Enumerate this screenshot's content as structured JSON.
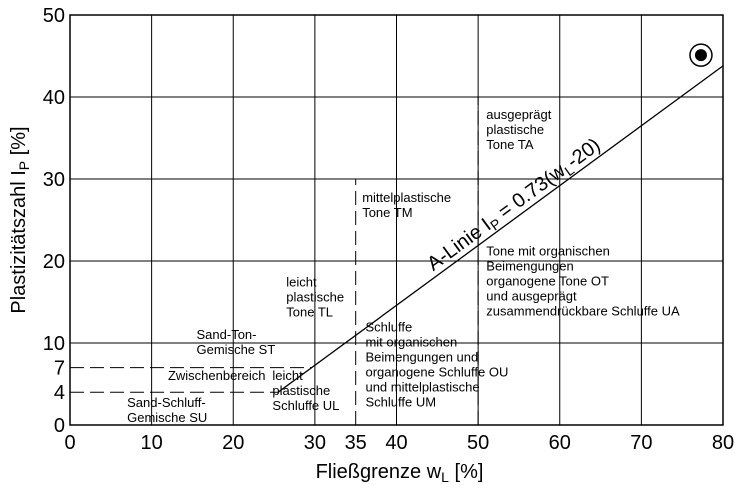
{
  "chart_data": {
    "type": "line",
    "title": "",
    "xlabel": {
      "main": "Fließgrenze w",
      "sub": "L",
      "unit": " [%]"
    },
    "ylabel": {
      "main": "Plastizitätszahl I",
      "sub": "P",
      "unit": " [%]"
    },
    "xlim": [
      0,
      80
    ],
    "ylim": [
      0,
      50
    ],
    "grid": true,
    "x_ticks": [
      0,
      10,
      20,
      30,
      35,
      40,
      50,
      60,
      70,
      80
    ],
    "y_ticks": [
      0,
      4,
      7,
      10,
      20,
      30,
      40,
      50
    ],
    "series": [
      {
        "label": {
          "prefix": "A-Linie I",
          "sub": "P",
          "mid": " = 0.73(w",
          "sub2": "L",
          "suffix": "-20)"
        },
        "style": "solid",
        "x": [
          25.5,
          80
        ],
        "y": [
          4,
          43.8
        ]
      }
    ],
    "boundaries": [
      {
        "style": "dashed",
        "x": [
          0,
          25.5
        ],
        "y": [
          4,
          4
        ]
      },
      {
        "style": "dashed",
        "x": [
          0,
          29.6
        ],
        "y": [
          7,
          7
        ]
      },
      {
        "style": "dashed",
        "x": [
          35,
          35
        ],
        "y": [
          0,
          30
        ]
      },
      {
        "style": "dashed",
        "x": [
          50,
          50
        ],
        "y": [
          0,
          40
        ]
      }
    ],
    "points": [
      {
        "x": 77.3,
        "y": 45.1,
        "marker": "circled-dot"
      }
    ],
    "zones": [
      {
        "lines": [
          "ausgeprägt",
          "plastische",
          "Tone TA"
        ],
        "x": 51,
        "y": 37.3
      },
      {
        "lines": [
          "mittelplastische",
          "Tone TM"
        ],
        "x": 35.8,
        "y": 27.2
      },
      {
        "lines": [
          "Tone mit organischen",
          "Beimengungen",
          "organogene Tone OT",
          "und ausgeprägt",
          "zusammendrückbare Schluffe UA"
        ],
        "x": 51,
        "y": 20.7
      },
      {
        "lines": [
          "leicht",
          "plastische",
          "Tone TL"
        ],
        "x": 26.5,
        "y": 16.9
      },
      {
        "lines": [
          "Sand-Ton-",
          "Gemische ST"
        ],
        "x": 15.5,
        "y": 10.5
      },
      {
        "lines": [
          "Schluffe",
          "mit organischen",
          "Beimengungen und",
          "organogene Schluffe OU",
          "und mittelplastische",
          "Schluffe UM"
        ],
        "x": 36.2,
        "y": 11.4
      },
      {
        "lines": [
          "Zwischenbereich"
        ],
        "x": 12,
        "y": 5.5
      },
      {
        "lines": [
          "leicht",
          "plastische",
          "Schluffe UL"
        ],
        "x": 24.8,
        "y": 5.5
      },
      {
        "lines": [
          "Sand-Schluff-",
          "Gemische SU"
        ],
        "x": 7,
        "y": 2.2
      }
    ]
  }
}
